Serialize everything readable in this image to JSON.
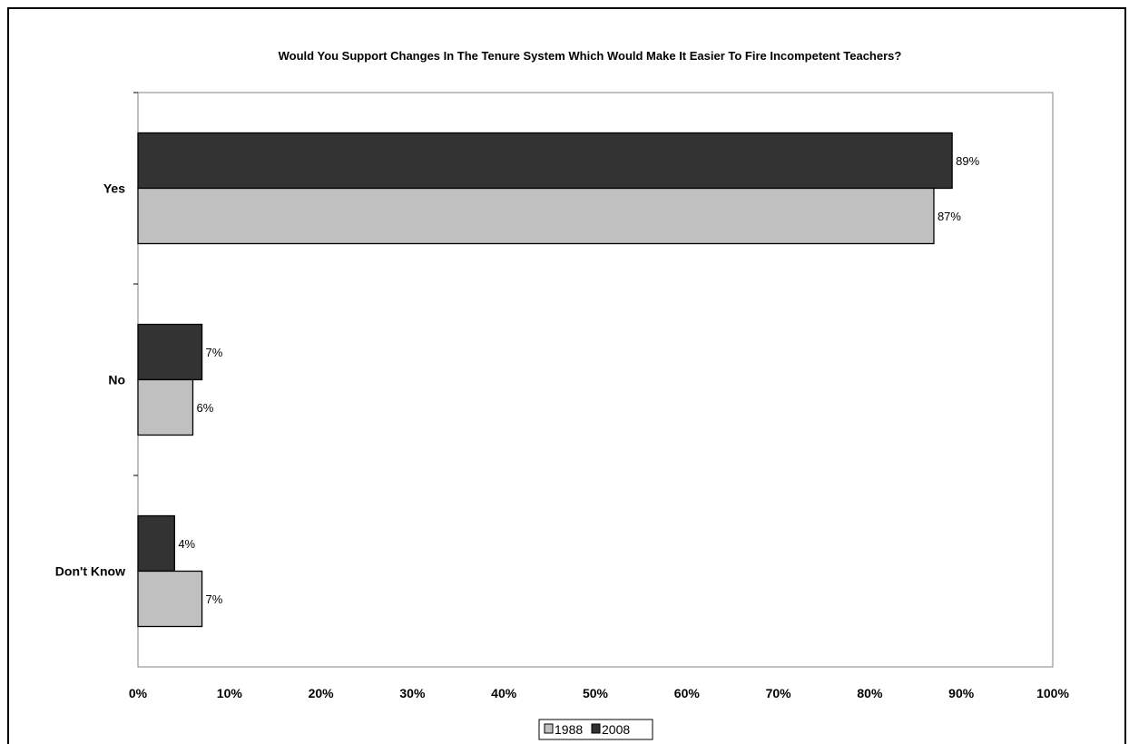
{
  "chart_data": {
    "type": "bar",
    "orientation": "horizontal",
    "title": "Would You Support Changes In The Tenure System Which Would Make It Easier To Fire Incompetent Teachers?",
    "categories": [
      "Yes",
      "No",
      "Don't Know"
    ],
    "series": [
      {
        "name": "2008",
        "values": [
          89,
          7,
          4
        ],
        "labels": [
          "89%",
          "7%",
          "4%"
        ],
        "color": "#333333"
      },
      {
        "name": "1988",
        "values": [
          87,
          6,
          7
        ],
        "labels": [
          "87%",
          "6%",
          "7%"
        ],
        "color": "#c0c0c0"
      }
    ],
    "xlim": [
      0,
      100
    ],
    "x_ticks": [
      "0%",
      "10%",
      "20%",
      "30%",
      "40%",
      "50%",
      "60%",
      "70%",
      "80%",
      "90%",
      "100%"
    ],
    "grid": false,
    "legend": {
      "placement": "bottom",
      "entries": [
        "1988",
        "2008"
      ]
    }
  }
}
